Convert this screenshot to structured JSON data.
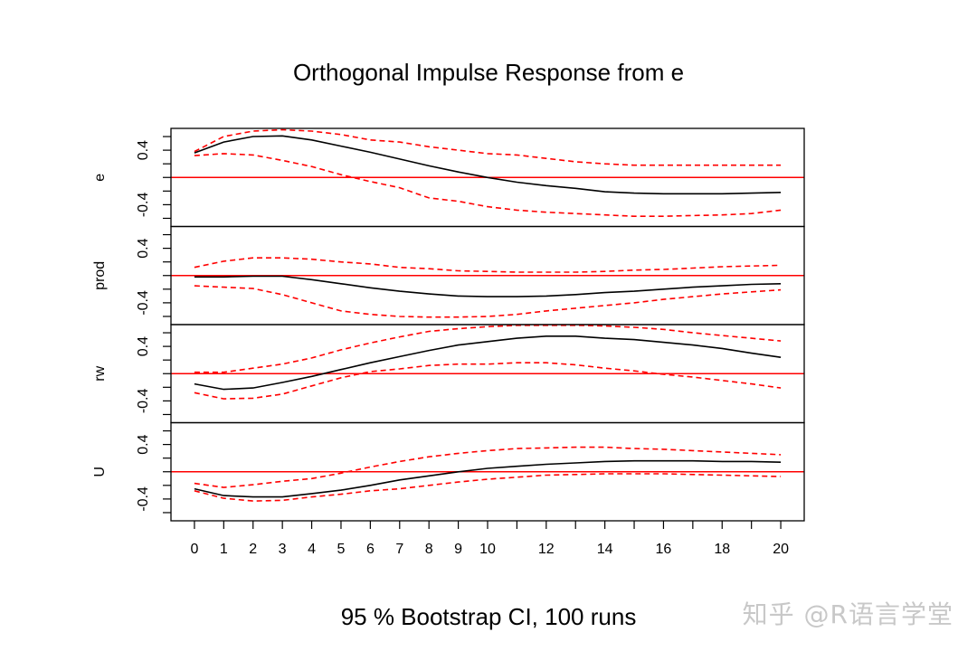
{
  "chart_data": {
    "type": "line",
    "title": "Orthogonal Impulse Response from e",
    "subtitle": "95 % Bootstrap CI,  100 runs",
    "impulse": "e",
    "x": [
      0,
      1,
      2,
      3,
      4,
      5,
      6,
      7,
      8,
      9,
      10,
      11,
      12,
      13,
      14,
      15,
      16,
      17,
      18,
      19,
      20
    ],
    "x_tick_labels": [
      "0",
      "1",
      "2",
      "3",
      "4",
      "5",
      "6",
      "7",
      "8",
      "9",
      "10",
      "12",
      "14",
      "16",
      "18",
      "20"
    ],
    "x_tick_values": [
      0,
      1,
      2,
      3,
      4,
      5,
      6,
      7,
      8,
      9,
      10,
      12,
      14,
      16,
      18,
      20
    ],
    "xlim": [
      -0.8,
      20.8
    ],
    "ylim": [
      -0.72,
      0.72
    ],
    "y_tick_labels": [
      "-0.4",
      "0.4"
    ],
    "y_tick_values": [
      -0.4,
      0.4
    ],
    "y_minor_ticks": [
      -0.6,
      -0.4,
      -0.2,
      0,
      0.2,
      0.4,
      0.6
    ],
    "zero_line": 0,
    "colors": {
      "response": "#000000",
      "ci": "#ff0000",
      "zero": "#ff0000"
    },
    "panels": [
      {
        "name": "e",
        "response": [
          0.36,
          0.52,
          0.6,
          0.61,
          0.55,
          0.46,
          0.37,
          0.27,
          0.17,
          0.08,
          0.0,
          -0.07,
          -0.12,
          -0.16,
          -0.21,
          -0.23,
          -0.24,
          -0.24,
          -0.24,
          -0.23,
          -0.22
        ],
        "lower": [
          0.32,
          0.35,
          0.33,
          0.25,
          0.16,
          0.04,
          -0.06,
          -0.15,
          -0.3,
          -0.35,
          -0.43,
          -0.48,
          -0.51,
          -0.53,
          -0.55,
          -0.57,
          -0.57,
          -0.56,
          -0.55,
          -0.53,
          -0.48
        ],
        "upper": [
          0.38,
          0.6,
          0.68,
          0.7,
          0.68,
          0.63,
          0.55,
          0.52,
          0.45,
          0.4,
          0.35,
          0.33,
          0.28,
          0.23,
          0.2,
          0.18,
          0.18,
          0.18,
          0.18,
          0.18,
          0.18
        ]
      },
      {
        "name": "prod",
        "response": [
          -0.02,
          -0.02,
          -0.01,
          -0.01,
          -0.06,
          -0.12,
          -0.18,
          -0.23,
          -0.27,
          -0.3,
          -0.31,
          -0.31,
          -0.3,
          -0.28,
          -0.25,
          -0.23,
          -0.2,
          -0.17,
          -0.15,
          -0.13,
          -0.12
        ],
        "lower": [
          -0.15,
          -0.17,
          -0.19,
          -0.28,
          -0.4,
          -0.52,
          -0.57,
          -0.6,
          -0.61,
          -0.61,
          -0.6,
          -0.57,
          -0.52,
          -0.48,
          -0.44,
          -0.4,
          -0.35,
          -0.31,
          -0.27,
          -0.24,
          -0.21
        ],
        "upper": [
          0.12,
          0.21,
          0.26,
          0.26,
          0.24,
          0.2,
          0.17,
          0.12,
          0.1,
          0.07,
          0.06,
          0.05,
          0.05,
          0.05,
          0.06,
          0.08,
          0.09,
          0.11,
          0.13,
          0.14,
          0.15
        ]
      },
      {
        "name": "rw",
        "response": [
          -0.15,
          -0.23,
          -0.21,
          -0.13,
          -0.04,
          0.06,
          0.16,
          0.25,
          0.34,
          0.42,
          0.47,
          0.52,
          0.55,
          0.55,
          0.52,
          0.5,
          0.46,
          0.42,
          0.37,
          0.3,
          0.24
        ],
        "lower": [
          -0.28,
          -0.37,
          -0.36,
          -0.3,
          -0.18,
          -0.06,
          0.03,
          0.07,
          0.12,
          0.14,
          0.14,
          0.16,
          0.16,
          0.13,
          0.08,
          0.04,
          -0.01,
          -0.05,
          -0.1,
          -0.15,
          -0.21
        ],
        "upper": [
          0.02,
          0.02,
          0.08,
          0.14,
          0.23,
          0.35,
          0.45,
          0.54,
          0.62,
          0.66,
          0.69,
          0.71,
          0.71,
          0.71,
          0.7,
          0.68,
          0.65,
          0.6,
          0.56,
          0.52,
          0.48
        ]
      },
      {
        "name": "U",
        "response": [
          -0.25,
          -0.35,
          -0.37,
          -0.37,
          -0.32,
          -0.27,
          -0.2,
          -0.12,
          -0.06,
          0.0,
          0.05,
          0.08,
          0.11,
          0.13,
          0.15,
          0.16,
          0.16,
          0.16,
          0.15,
          0.15,
          0.14
        ],
        "lower": [
          -0.28,
          -0.39,
          -0.43,
          -0.42,
          -0.37,
          -0.33,
          -0.28,
          -0.25,
          -0.2,
          -0.15,
          -0.11,
          -0.08,
          -0.05,
          -0.04,
          -0.03,
          -0.03,
          -0.03,
          -0.04,
          -0.05,
          -0.06,
          -0.07
        ],
        "upper": [
          -0.17,
          -0.23,
          -0.19,
          -0.14,
          -0.1,
          -0.02,
          0.07,
          0.15,
          0.22,
          0.27,
          0.31,
          0.34,
          0.35,
          0.36,
          0.36,
          0.34,
          0.33,
          0.31,
          0.29,
          0.27,
          0.25
        ]
      }
    ]
  },
  "watermark": "知乎 @R语言学堂"
}
